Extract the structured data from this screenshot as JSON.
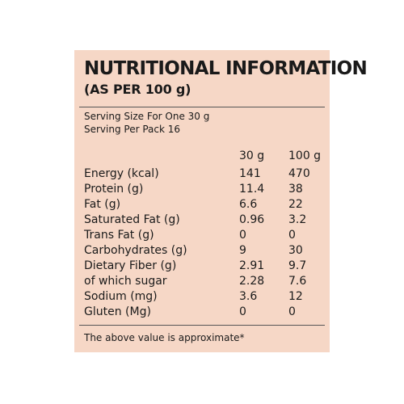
{
  "label": {
    "title": "NUTRITIONAL INFORMATION",
    "subtitle": "(AS PER 100 g)",
    "serving_size": "Serving Size For One 30 g",
    "serving_per_pack": "Serving Per Pack 16",
    "column_headers": [
      "30 g",
      "100 g"
    ],
    "rows": [
      {
        "name": "Energy (kcal)",
        "per_30g": "141",
        "per_100g": "470"
      },
      {
        "name": "Protein (g)",
        "per_30g": "11.4",
        "per_100g": "38"
      },
      {
        "name": "Fat (g)",
        "per_30g": "6.6",
        "per_100g": "22"
      },
      {
        "name": "Saturated Fat (g)",
        "per_30g": "0.96",
        "per_100g": "3.2"
      },
      {
        "name": "Trans Fat (g)",
        "per_30g": "0",
        "per_100g": "0"
      },
      {
        "name": "Carbohydrates (g)",
        "per_30g": "9",
        "per_100g": "30"
      },
      {
        "name": "Dietary Fiber (g)",
        "per_30g": "2.91",
        "per_100g": "9.7"
      },
      {
        "name": "of which sugar",
        "per_30g": "2.28",
        "per_100g": "7.6"
      },
      {
        "name": "Sodium (mg)",
        "per_30g": "3.6",
        "per_100g": "12"
      },
      {
        "name": "Gluten (Mg)",
        "per_30g": "0",
        "per_100g": "0"
      }
    ],
    "footer": "The above value is approximate*",
    "colors": {
      "panel_background": "#f6d7c6",
      "text": "#1a1a1a",
      "rule": "#555555"
    }
  }
}
